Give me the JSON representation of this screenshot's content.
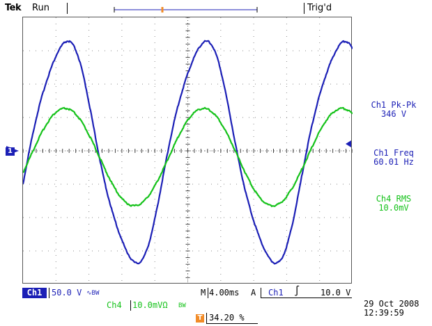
{
  "header": {
    "brand": "Tek",
    "acq_state": "Run",
    "trigger_state": "Trig'd"
  },
  "colors": {
    "ch1": "#1b1fb6",
    "ch4": "#15c21a",
    "trigger_marker": "#f28c28"
  },
  "icons": {
    "ground_marker": "1",
    "trigger_position": "T"
  },
  "measurements": [
    {
      "label": "Ch1 Pk-Pk",
      "value": "346 V",
      "channel": "ch1"
    },
    {
      "label": "Ch1 Freq",
      "value": "60.01 Hz",
      "channel": "ch1"
    },
    {
      "label": "Ch4 RMS",
      "value": "10.0mV",
      "channel": "ch4"
    }
  ],
  "ch1": {
    "tag": "Ch1",
    "scale": "50.0 V",
    "bw_glyph": "∿BW"
  },
  "ch4": {
    "tag": "Ch4",
    "scale": "10.0mVΩ",
    "bw_glyph": "BW"
  },
  "timebase": {
    "m_label": "M",
    "m_value": "4.00ms",
    "a_label": "A",
    "trigger_source": "Ch1",
    "slope_glyph": "∫",
    "trigger_level": "10.0 V"
  },
  "trigger_position": "34.20 %",
  "datetime": {
    "date": "29 Oct  2008",
    "time": "12:39:59"
  }
}
